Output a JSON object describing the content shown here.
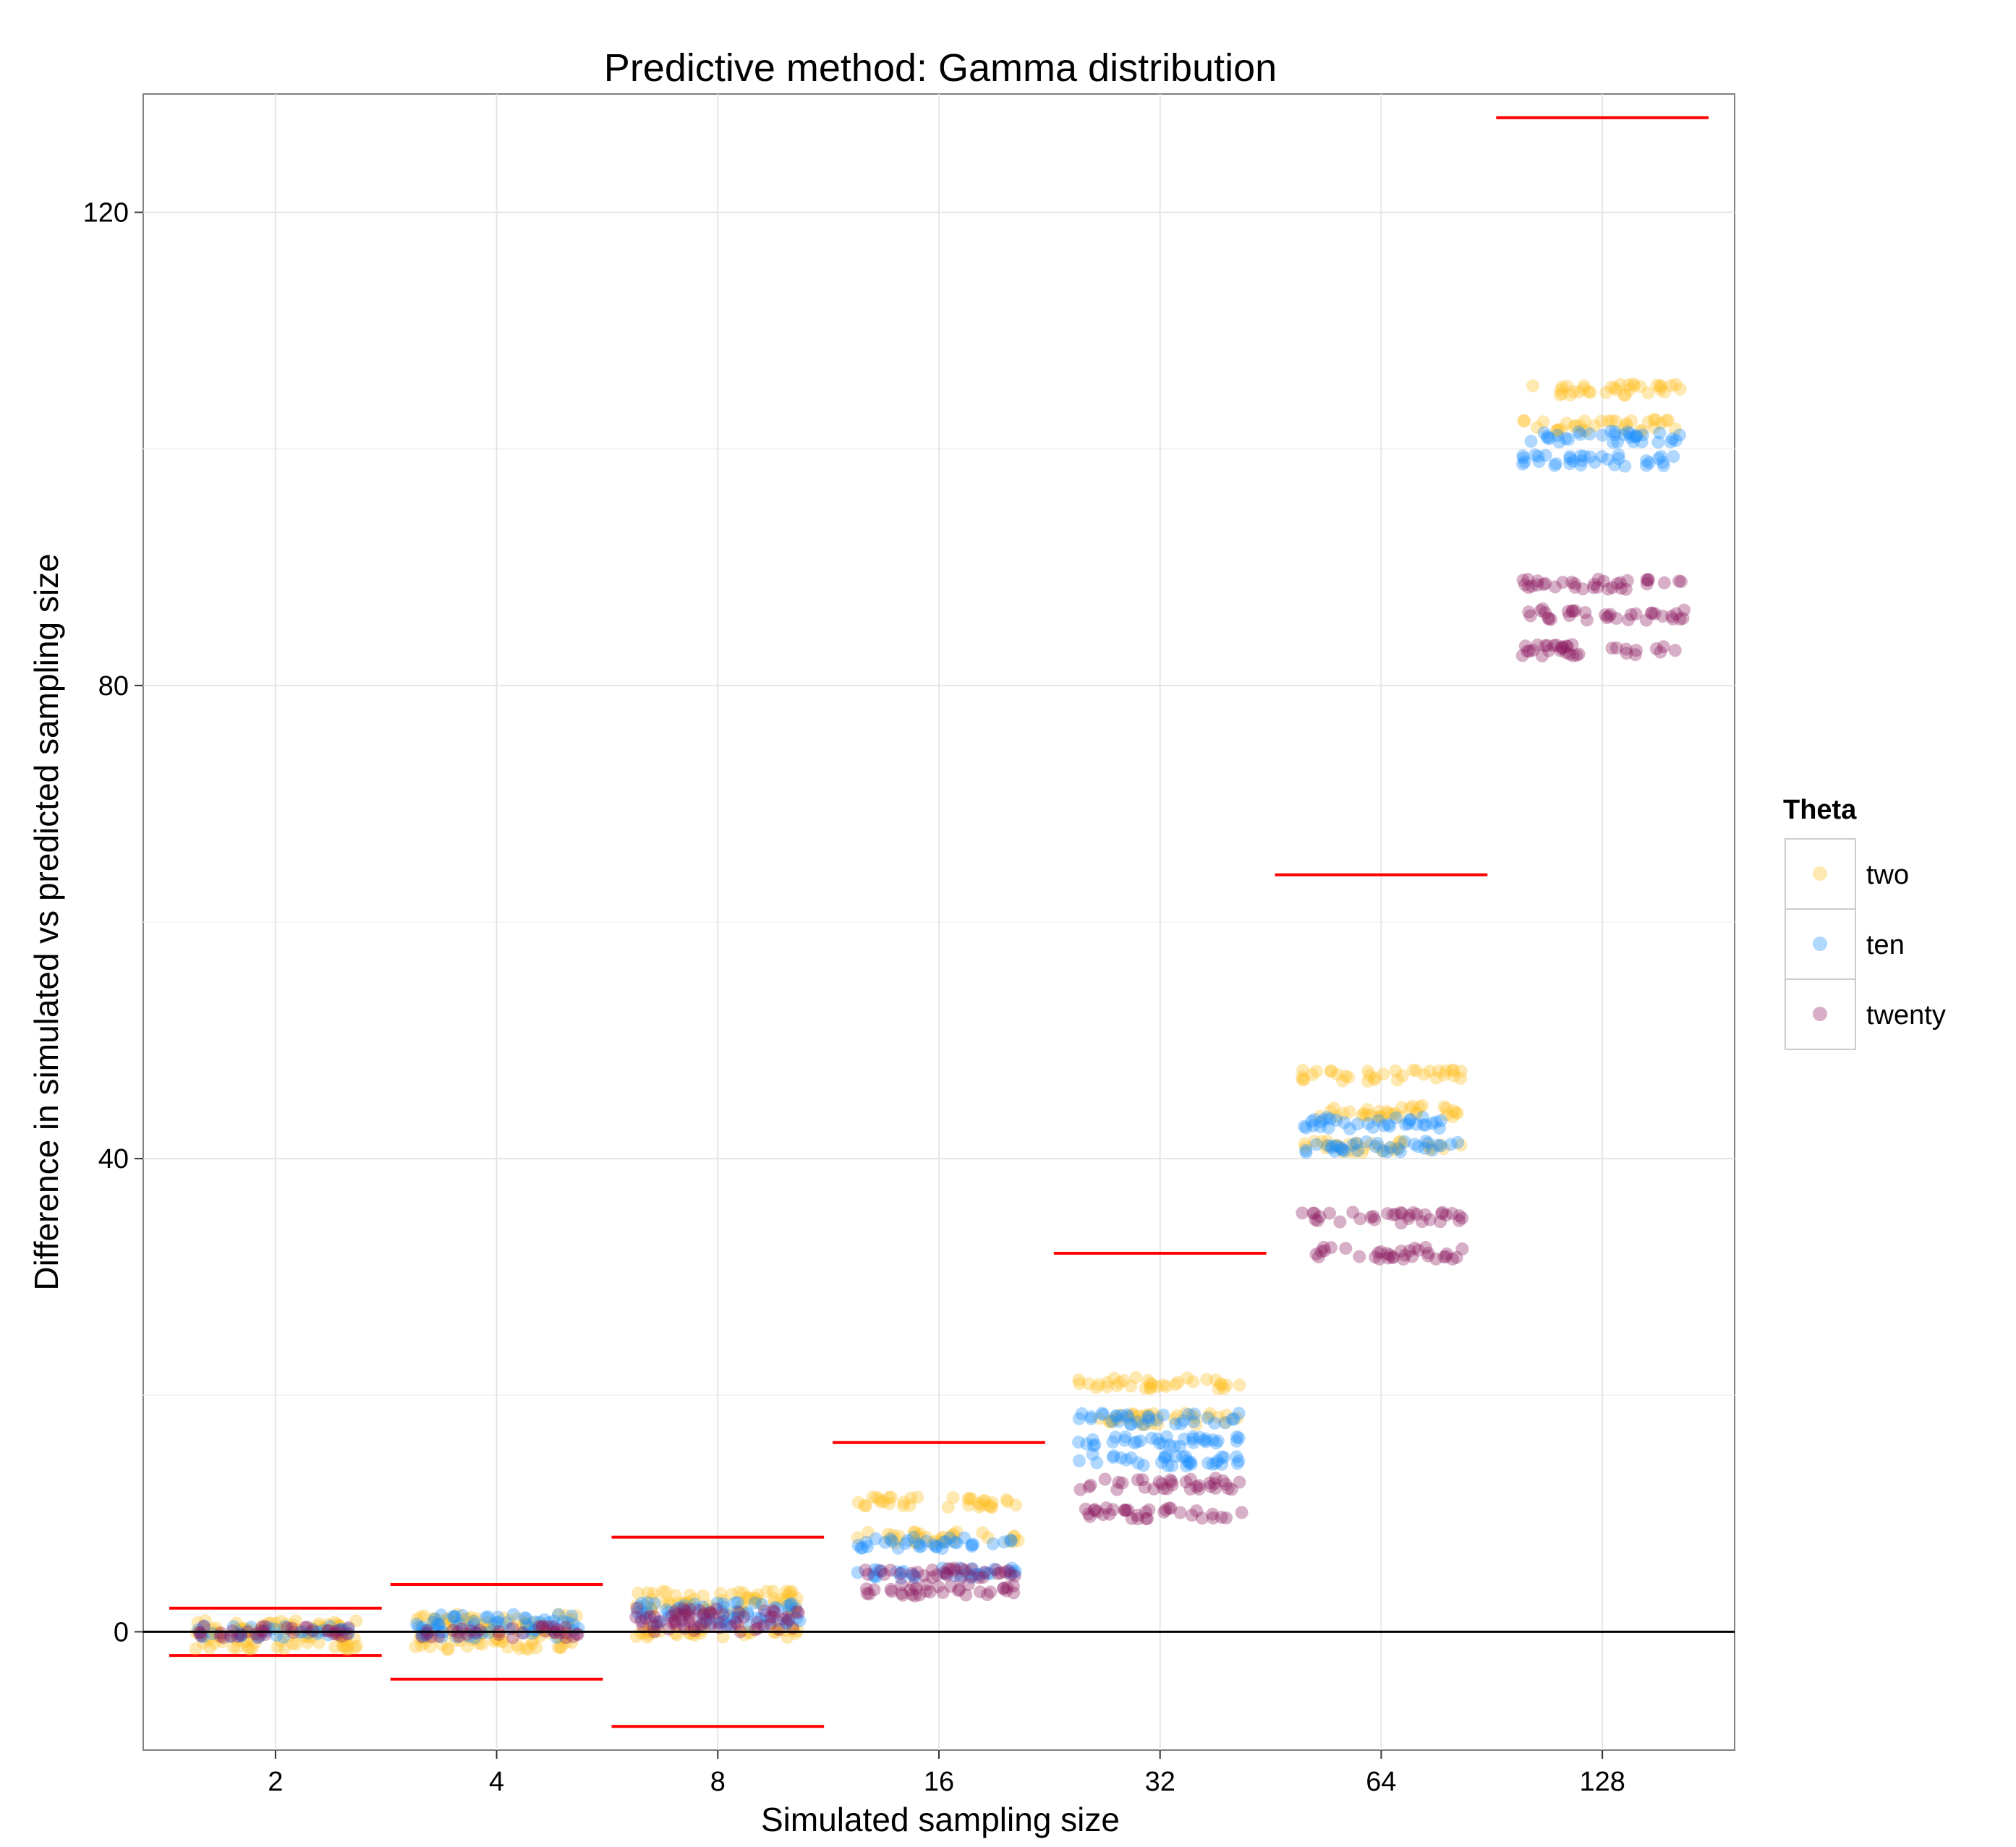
{
  "chart_data": {
    "type": "scatter",
    "title": "Predictive method: Gamma distribution",
    "xlabel": "Simulated sampling size",
    "ylabel": "Difference in simulated vs predicted sampling size",
    "categories": [
      "2",
      "4",
      "8",
      "16",
      "32",
      "64",
      "128"
    ],
    "y_ticks": [
      "0",
      "40",
      "80",
      "120"
    ],
    "ylim": [
      -10,
      130
    ],
    "grid": true,
    "legend": {
      "title": "Theta",
      "position": "right"
    },
    "reference_line_y": 0,
    "interval_bounds": [
      {
        "category": "2",
        "upper": 2,
        "lower": -2
      },
      {
        "category": "4",
        "upper": 4,
        "lower": -4
      },
      {
        "category": "8",
        "upper": 8,
        "lower": -8
      },
      {
        "category": "16",
        "upper": 16,
        "lower": null
      },
      {
        "category": "32",
        "upper": 32,
        "lower": null
      },
      {
        "category": "64",
        "upper": 64,
        "lower": null
      },
      {
        "category": "128",
        "upper": 128,
        "lower": null
      }
    ],
    "series": [
      {
        "name": "two",
        "color": "#FFC125",
        "bands": [
          {
            "category": "2",
            "levels": [
              -1,
              0,
              0.5
            ]
          },
          {
            "category": "4",
            "levels": [
              -1,
              0,
              1
            ]
          },
          {
            "category": "8",
            "levels": [
              0,
              2,
              3
            ]
          },
          {
            "category": "16",
            "levels": [
              8,
              11
            ]
          },
          {
            "category": "32",
            "levels": [
              18,
              21
            ]
          },
          {
            "category": "64",
            "levels": [
              41,
              44,
              47
            ]
          },
          {
            "category": "128",
            "levels": [
              102,
              105
            ]
          }
        ]
      },
      {
        "name": "ten",
        "color": "#1E90FF",
        "bands": [
          {
            "category": "2",
            "levels": [
              0
            ]
          },
          {
            "category": "4",
            "levels": [
              0,
              1
            ]
          },
          {
            "category": "8",
            "levels": [
              1,
              2
            ]
          },
          {
            "category": "16",
            "levels": [
              5,
              7.5
            ]
          },
          {
            "category": "32",
            "levels": [
              14.5,
              16,
              18
            ]
          },
          {
            "category": "64",
            "levels": [
              41,
              43
            ]
          },
          {
            "category": "128",
            "levels": [
              99,
              101
            ]
          }
        ]
      },
      {
        "name": "twenty",
        "color": "#8B1C62",
        "bands": [
          {
            "category": "2",
            "levels": [
              0
            ]
          },
          {
            "category": "4",
            "levels": [
              0
            ]
          },
          {
            "category": "8",
            "levels": [
              0.5,
              1.5
            ]
          },
          {
            "category": "16",
            "levels": [
              3.5,
              5
            ]
          },
          {
            "category": "32",
            "levels": [
              10,
              12.5
            ]
          },
          {
            "category": "64",
            "levels": [
              32,
              35
            ]
          },
          {
            "category": "128",
            "levels": [
              83,
              86,
              88.5
            ]
          }
        ]
      }
    ]
  }
}
